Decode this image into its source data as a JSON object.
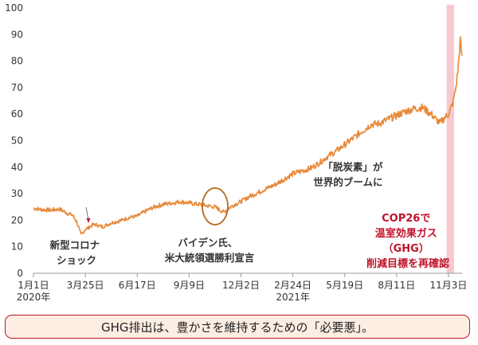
{
  "chart_data": {
    "type": "line",
    "title": "",
    "xlabel": "",
    "ylabel": "",
    "ylim": [
      0,
      100
    ],
    "y_ticks": [
      0,
      10,
      20,
      30,
      40,
      50,
      60,
      70,
      80,
      90,
      100
    ],
    "x_range": [
      "2020-01-01",
      "2021-11-25"
    ],
    "x_ticks": [
      {
        "date": "2020-01-01",
        "label": "1月1日",
        "sublabel": "2020年"
      },
      {
        "date": "2020-03-25",
        "label": "3月25日"
      },
      {
        "date": "2020-06-17",
        "label": "6月17日"
      },
      {
        "date": "2020-09-09",
        "label": "9月9日"
      },
      {
        "date": "2020-12-02",
        "label": "12月2日"
      },
      {
        "date": "2021-02-24",
        "label": "2月24日",
        "sublabel": "2021年"
      },
      {
        "date": "2021-05-19",
        "label": "5月19日"
      },
      {
        "date": "2021-08-11",
        "label": "8月11日"
      },
      {
        "date": "2021-11-03",
        "label": "11月3日"
      }
    ],
    "grid": false,
    "line_color": "#e8893a",
    "highlight_band": {
      "from": "2021-10-31",
      "to": "2021-11-12",
      "color": "#f7c9cf"
    },
    "series": [
      {
        "name": "",
        "points": [
          [
            "2020-01-01",
            24.5
          ],
          [
            "2020-01-15",
            24.0
          ],
          [
            "2020-01-29",
            23.8
          ],
          [
            "2020-02-12",
            24.2
          ],
          [
            "2020-02-26",
            22.5
          ],
          [
            "2020-03-04",
            22.0
          ],
          [
            "2020-03-11",
            19.5
          ],
          [
            "2020-03-18",
            14.5
          ],
          [
            "2020-03-25",
            16.5
          ],
          [
            "2020-04-08",
            18.5
          ],
          [
            "2020-04-22",
            17.5
          ],
          [
            "2020-05-06",
            19.0
          ],
          [
            "2020-05-20",
            19.8
          ],
          [
            "2020-06-03",
            21.0
          ],
          [
            "2020-06-17",
            21.5
          ],
          [
            "2020-07-01",
            23.5
          ],
          [
            "2020-07-15",
            25.0
          ],
          [
            "2020-07-29",
            26.0
          ],
          [
            "2020-08-12",
            26.5
          ],
          [
            "2020-08-26",
            27.0
          ],
          [
            "2020-09-09",
            26.5
          ],
          [
            "2020-09-23",
            26.0
          ],
          [
            "2020-10-07",
            25.5
          ],
          [
            "2020-10-21",
            25.0
          ],
          [
            "2020-11-04",
            23.0
          ],
          [
            "2020-11-18",
            25.5
          ],
          [
            "2020-12-02",
            27.0
          ],
          [
            "2020-12-16",
            29.0
          ],
          [
            "2020-12-30",
            30.5
          ],
          [
            "2021-01-13",
            32.0
          ],
          [
            "2021-01-27",
            33.5
          ],
          [
            "2021-02-10",
            35.5
          ],
          [
            "2021-02-24",
            37.5
          ],
          [
            "2021-03-10",
            38.5
          ],
          [
            "2021-03-24",
            39.5
          ],
          [
            "2021-04-07",
            41.5
          ],
          [
            "2021-04-21",
            44.0
          ],
          [
            "2021-05-05",
            46.0
          ],
          [
            "2021-05-19",
            48.5
          ],
          [
            "2021-06-02",
            51.0
          ],
          [
            "2021-06-16",
            53.5
          ],
          [
            "2021-06-30",
            56.0
          ],
          [
            "2021-07-14",
            56.5
          ],
          [
            "2021-07-28",
            58.0
          ],
          [
            "2021-08-11",
            59.5
          ],
          [
            "2021-08-25",
            61.0
          ],
          [
            "2021-09-08",
            62.0
          ],
          [
            "2021-09-22",
            62.5
          ],
          [
            "2021-10-06",
            60.0
          ],
          [
            "2021-10-20",
            56.5
          ],
          [
            "2021-10-27",
            58.5
          ],
          [
            "2021-11-03",
            60.0
          ],
          [
            "2021-11-10",
            64.0
          ],
          [
            "2021-11-15",
            70.0
          ],
          [
            "2021-11-19",
            78.0
          ],
          [
            "2021-11-22",
            88.0
          ],
          [
            "2021-11-25",
            82.0
          ]
        ]
      }
    ],
    "annotations": [
      {
        "lines": [
          "新型コロナ",
          "ショック"
        ],
        "style": "normal"
      },
      {
        "lines": [
          "バイデン氏、",
          "米大統領選勝利宣言"
        ],
        "style": "normal"
      },
      {
        "lines": [
          "「脱炭素」が",
          "世界的ブームに"
        ],
        "style": "normal"
      },
      {
        "lines": [
          "COP26で",
          "温室効果ガス",
          "（GHG）",
          "削減目標を再確認"
        ],
        "style": "red"
      }
    ]
  },
  "caption": {
    "text": "GHG排出は、豊かさを維持するための「必要悪」。"
  }
}
